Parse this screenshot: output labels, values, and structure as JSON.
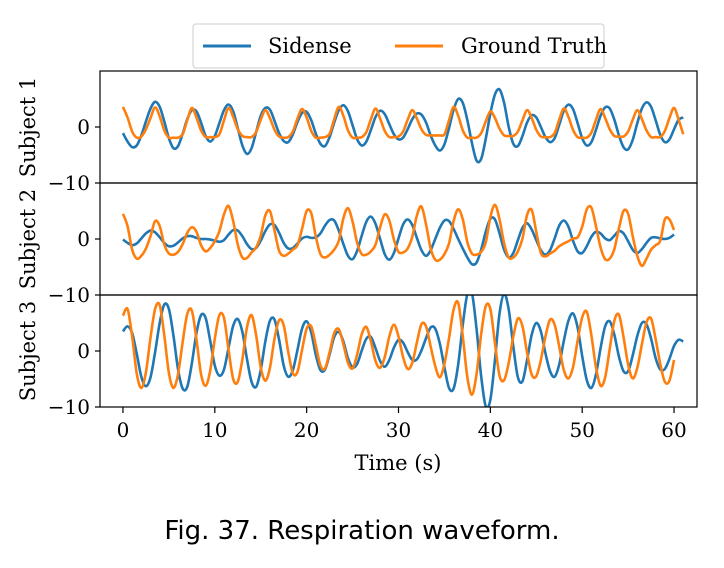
{
  "caption": "Fig. 37.  Respiration waveform.",
  "legend": {
    "placement": "top-center",
    "items": [
      {
        "label": "Sidense",
        "color": "#1f77b4"
      },
      {
        "label": "Ground Truth",
        "color": "#ff7f0e"
      }
    ]
  },
  "chart_data": {
    "type": "line",
    "xlabel": "Time (s)",
    "xlim": [
      -2.5,
      62.5
    ],
    "xticks": [
      0,
      10,
      20,
      30,
      40,
      50,
      60
    ],
    "sample_step": 0.5,
    "x_start": 0,
    "x_end": 60,
    "subplots": [
      {
        "ylabel": "Subject 1",
        "ylim": [
          -10,
          10
        ],
        "yticks": [
          0,
          -10
        ],
        "series": [
          {
            "name": "Sidense",
            "color": "#1f77b4",
            "y": [
              -1.1,
              -2.6,
              -3.6,
              -3.3,
              -1.5,
              1.0,
              3.3,
              4.5,
              3.6,
              1.0,
              -2.0,
              -3.8,
              -3.4,
              -1.2,
              1.4,
              3.0,
              2.8,
              0.8,
              -1.6,
              -2.6,
              -1.6,
              0.7,
              3.0,
              4.0,
              2.8,
              -0.2,
              -3.3,
              -4.8,
              -3.8,
              -0.9,
              2.0,
              3.4,
              3.1,
              1.1,
              -1.1,
              -2.5,
              -2.7,
              -1.3,
              0.9,
              2.5,
              2.7,
              1.2,
              -1.2,
              -3.0,
              -3.4,
              -1.8,
              0.8,
              3.0,
              3.9,
              2.8,
              0.3,
              -2.2,
              -3.3,
              -2.6,
              -0.5,
              1.8,
              2.9,
              2.3,
              0.5,
              -1.3,
              -2.2,
              -1.9,
              -0.4,
              1.4,
              2.4,
              2.2,
              0.8,
              -1.5,
              -3.3,
              -4.2,
              -3.1,
              -0.2,
              3.1,
              5.0,
              4.3,
              1.2,
              -2.9,
              -6.0,
              -5.7,
              -2.1,
              2.4,
              5.8,
              6.7,
              4.3,
              0.0,
              -3.0,
              -3.4,
              -1.6,
              0.8,
              2.1,
              1.7,
              0.0,
              -1.8,
              -2.7,
              -2.0,
              0.4,
              2.9,
              4.0,
              3.2,
              0.7,
              -2.0,
              -3.3,
              -2.7,
              -0.5,
              2.0,
              3.5,
              3.3,
              1.3,
              -1.5,
              -3.6,
              -4.0,
              -2.3,
              0.7,
              3.3,
              4.4,
              3.6,
              1.2,
              -1.4,
              -2.7,
              -2.2,
              -0.4,
              1.3,
              1.7
            ]
          },
          {
            "name": "Ground Truth",
            "color": "#ff7f0e",
            "y": [
              3.6,
              1.7,
              -0.8,
              -1.9,
              -1.7,
              -0.4,
              1.6,
              3.5,
              1.9,
              -0.6,
              -1.9,
              -1.9,
              -1.9,
              -1.3,
              1.2,
              3.4,
              1.7,
              -0.6,
              -1.8,
              -1.8,
              -1.8,
              -1.3,
              1.2,
              3.4,
              1.8,
              -0.4,
              -1.6,
              -1.8,
              -1.8,
              -0.9,
              1.3,
              3.0,
              1.6,
              -0.5,
              -1.7,
              -1.9,
              -1.8,
              -0.8,
              1.5,
              3.2,
              1.7,
              -0.7,
              -1.9,
              -1.9,
              -1.8,
              -1.2,
              1.4,
              3.6,
              2.0,
              -0.6,
              -1.9,
              -1.9,
              -1.8,
              -0.9,
              1.4,
              3.3,
              1.5,
              -0.7,
              -1.8,
              -1.8,
              -1.7,
              -0.8,
              1.3,
              3.0,
              1.5,
              -0.4,
              -1.4,
              -1.5,
              -1.5,
              -1.5,
              -1.3,
              1.2,
              3.6,
              2.0,
              -0.6,
              -1.9,
              -1.9,
              -1.9,
              -1.1,
              1.0,
              2.8,
              1.6,
              -0.3,
              -1.5,
              -1.6,
              -1.6,
              -0.8,
              1.2,
              3.0,
              1.6,
              -0.5,
              -1.7,
              -1.8,
              -1.8,
              -1.1,
              1.3,
              3.3,
              1.8,
              -0.5,
              -1.8,
              -1.9,
              -1.9,
              -1.0,
              1.3,
              3.2,
              1.6,
              -0.4,
              -1.6,
              -1.7,
              -1.7,
              -0.8,
              1.3,
              3.0,
              1.4,
              -0.6,
              -1.8,
              -1.8,
              -1.8,
              -0.7,
              1.6,
              3.4,
              1.3,
              -1.3
            ]
          }
        ]
      },
      {
        "ylabel": "Subject 2",
        "ylim": [
          -10,
          10
        ],
        "yticks": [
          0,
          -10
        ],
        "series": [
          {
            "name": "Sidense",
            "color": "#1f77b4",
            "y": [
              -0.1,
              -0.7,
              -1.1,
              -0.8,
              0.1,
              1.0,
              1.5,
              1.2,
              0.3,
              -0.7,
              -1.3,
              -1.2,
              -0.6,
              0.1,
              0.5,
              0.5,
              0.2,
              0.0,
              0.0,
              -0.1,
              -0.3,
              -0.5,
              -0.2,
              0.8,
              1.6,
              1.5,
              0.5,
              -0.9,
              -1.8,
              -1.6,
              -0.3,
              1.4,
              2.6,
              2.5,
              1.1,
              -0.7,
              -1.7,
              -1.6,
              -0.8,
              0.1,
              0.4,
              0.2,
              0.3,
              1.0,
              2.4,
              3.4,
              3.3,
              1.5,
              -0.9,
              -3.0,
              -3.6,
              -2.1,
              0.6,
              3.1,
              4.0,
              2.7,
              0.0,
              -2.7,
              -3.7,
              -2.5,
              0.1,
              2.6,
              3.5,
              2.5,
              0.2,
              -2.0,
              -3.0,
              -2.0,
              0.0,
              2.0,
              3.3,
              3.2,
              1.8,
              0.0,
              -1.7,
              -3.3,
              -4.5,
              -4.2,
              -1.9,
              1.3,
              3.6,
              3.5,
              1.0,
              -1.9,
              -3.3,
              -2.5,
              -0.2,
              2.0,
              2.8,
              1.7,
              -0.2,
              -2.0,
              -2.8,
              -2.0,
              0.1,
              2.4,
              3.3,
              2.2,
              -0.3,
              -2.2,
              -2.5,
              -1.3,
              0.4,
              1.3,
              1.0,
              0.1,
              -0.2,
              0.6,
              1.4,
              1.0,
              -0.4,
              -1.9,
              -2.5,
              -1.8,
              -0.7,
              0.2,
              0.3,
              0.1,
              0.0,
              0.2,
              0.8
            ]
          },
          {
            "name": "Ground Truth",
            "color": "#ff7f0e",
            "y": [
              4.5,
              2.3,
              -1.9,
              -3.5,
              -3.0,
              -1.7,
              0.5,
              3.2,
              2.3,
              -1.0,
              -2.6,
              -2.8,
              -2.3,
              -0.9,
              1.1,
              2.1,
              1.3,
              -1.1,
              -2.2,
              -1.6,
              -0.4,
              1.4,
              4.4,
              5.9,
              3.2,
              -1.0,
              -3.3,
              -3.4,
              -2.4,
              -1.5,
              0.6,
              4.2,
              5.0,
              1.5,
              -2.1,
              -3.0,
              -2.6,
              -1.9,
              -1.1,
              1.8,
              5.0,
              4.6,
              0.4,
              -2.7,
              -3.3,
              -2.8,
              -1.9,
              -0.3,
              3.7,
              5.5,
              3.1,
              -0.7,
              -2.7,
              -2.8,
              -2.2,
              -1.0,
              2.1,
              4.4,
              3.3,
              -0.1,
              -2.3,
              -2.4,
              -1.7,
              0.4,
              4.2,
              5.8,
              2.6,
              -1.7,
              -3.7,
              -3.7,
              -2.7,
              -0.8,
              3.2,
              5.3,
              3.5,
              -0.6,
              -2.6,
              -2.8,
              -2.3,
              -0.6,
              3.9,
              6.1,
              3.5,
              -0.8,
              -3.3,
              -3.3,
              -2.2,
              0.1,
              4.3,
              5.2,
              1.3,
              -2.5,
              -3.1,
              -2.6,
              -2.1,
              -1.3,
              -0.8,
              -0.4,
              0.1,
              0.3,
              2.2,
              5.3,
              5.6,
              2.3,
              -1.5,
              -3.6,
              -3.5,
              -1.8,
              1.9,
              5.0,
              4.5,
              0.5,
              -3.0,
              -4.8,
              -3.5,
              -1.9,
              -1.1,
              -0.3,
              3.5,
              3.5,
              1.6
            ]
          }
        ]
      },
      {
        "ylabel": "Subject 3",
        "ylim": [
          -10,
          10
        ],
        "yticks": [
          0,
          -10
        ],
        "series": [
          {
            "name": "Sidense",
            "color": "#1f77b4",
            "y": [
              3.5,
              4.4,
              3.2,
              -0.5,
              -4.6,
              -6.3,
              -4.7,
              -0.2,
              5.0,
              8.3,
              7.5,
              2.7,
              -3.3,
              -6.7,
              -6.4,
              -2.2,
              3.2,
              6.4,
              5.9,
              1.8,
              -2.6,
              -4.4,
              -3.3,
              0.6,
              4.5,
              5.7,
              3.4,
              -1.4,
              -5.5,
              -6.4,
              -3.4,
              1.7,
              5.4,
              5.6,
              2.0,
              -2.6,
              -4.6,
              -3.4,
              0.2,
              4.0,
              5.3,
              3.3,
              -0.7,
              -3.4,
              -3.3,
              -0.6,
              2.5,
              3.4,
              1.7,
              -1.3,
              -2.9,
              -2.3,
              0.1,
              2.2,
              2.5,
              0.5,
              -1.8,
              -2.8,
              -1.6,
              0.6,
              2.0,
              1.5,
              -0.2,
              -1.6,
              -1.5,
              0.1,
              2.3,
              4.2,
              4.0,
              1.3,
              -2.9,
              -6.6,
              -6.7,
              -2.4,
              4.7,
              10.2,
              10.3,
              3.9,
              -4.5,
              -9.9,
              -8.7,
              -1.6,
              6.7,
              10.2,
              7.4,
              0.8,
              -4.7,
              -5.4,
              -1.6,
              2.9,
              5.0,
              3.5,
              -0.4,
              -3.6,
              -4.6,
              -2.4,
              1.8,
              5.4,
              6.7,
              4.2,
              -0.9,
              -5.2,
              -6.6,
              -4.2,
              0.5,
              4.4,
              5.3,
              2.9,
              -1.0,
              -3.6,
              -3.6,
              -0.8,
              2.7,
              5.0,
              4.8,
              2.2,
              -1.3,
              -3.3,
              -3.2,
              -1.4,
              0.9,
              2.0,
              1.7
            ]
          },
          {
            "name": "Ground Truth",
            "color": "#ff7f0e",
            "y": [
              6.3,
              7.5,
              2.6,
              -4.0,
              -6.6,
              -3.8,
              2.4,
              7.5,
              8.2,
              2.8,
              -3.9,
              -6.6,
              -4.1,
              1.6,
              6.6,
              7.2,
              2.1,
              -4.1,
              -6.2,
              -3.5,
              2.2,
              6.4,
              5.9,
              0.2,
              -5.0,
              -5.5,
              -1.5,
              4.2,
              6.4,
              2.8,
              -2.9,
              -5.3,
              -3.0,
              2.2,
              5.5,
              4.6,
              -0.2,
              -4.0,
              -3.7,
              0.2,
              4.0,
              4.4,
              1.0,
              -2.6,
              -3.1,
              -0.2,
              3.2,
              3.9,
              1.2,
              -2.1,
              -3.1,
              -0.6,
              3.0,
              4.3,
              1.7,
              -1.8,
              -3.0,
              -1.1,
              2.6,
              4.7,
              2.6,
              -1.1,
              -3.2,
              -2.1,
              1.5,
              4.8,
              4.4,
              0.8,
              -2.7,
              -4.7,
              -2.3,
              2.3,
              7.4,
              8.6,
              2.6,
              -4.7,
              -7.8,
              -4.1,
              3.0,
              8.0,
              7.5,
              1.4,
              -4.4,
              -5.2,
              -2.1,
              2.6,
              5.8,
              4.4,
              -0.3,
              -4.2,
              -4.5,
              -1.6,
              2.6,
              5.6,
              4.7,
              0.8,
              -3.4,
              -4.9,
              -2.9,
              1.8,
              6.0,
              7.0,
              2.8,
              -2.9,
              -6.2,
              -4.7,
              0.4,
              5.4,
              6.5,
              2.5,
              -2.4,
              -4.9,
              -3.0,
              1.2,
              5.1,
              5.8,
              2.1,
              -2.3,
              -5.5,
              -5.3,
              -1.6
            ]
          }
        ]
      }
    ]
  }
}
